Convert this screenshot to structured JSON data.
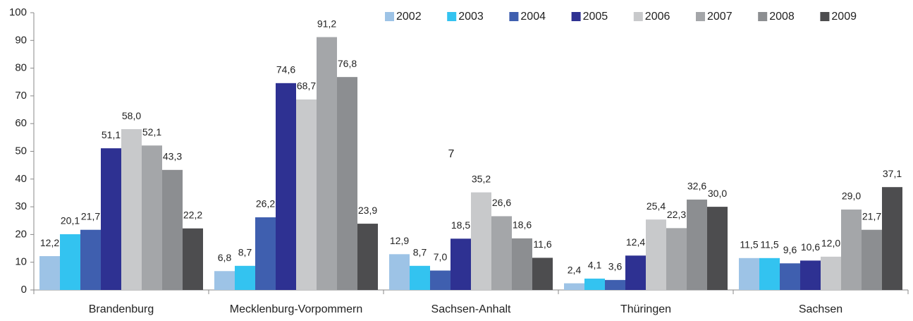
{
  "chart_data": {
    "type": "bar",
    "categories": [
      "Brandenburg",
      "Mecklenburg-Vorpommern",
      "Sachsen-Anhalt",
      "Thüringen",
      "Sachsen"
    ],
    "series": [
      {
        "name": "2002",
        "color": "#9dc3e6",
        "values": [
          12.2,
          6.8,
          12.9,
          2.4,
          11.5
        ],
        "value_labels": [
          "12,2",
          "6,8",
          "12,9",
          "2,4",
          "11,5"
        ]
      },
      {
        "name": "2003",
        "color": "#33c3f0",
        "values": [
          20.1,
          8.7,
          8.7,
          4.1,
          11.5
        ],
        "value_labels": [
          "20,1",
          "8,7",
          "8,7",
          "4,1",
          "11,5"
        ]
      },
      {
        "name": "2004",
        "color": "#3f5faf",
        "values": [
          21.7,
          26.2,
          7.0,
          3.6,
          9.6
        ],
        "value_labels": [
          "21,7",
          "26,2",
          "7,0",
          "3,6",
          "9,6"
        ]
      },
      {
        "name": "2005",
        "color": "#2e3192",
        "values": [
          51.1,
          74.6,
          18.5,
          12.4,
          10.6
        ],
        "value_labels": [
          "51,1",
          "74,6",
          "18,5",
          "12,4",
          "10,6"
        ]
      },
      {
        "name": "2006",
        "color": "#c8c9cb",
        "values": [
          58.0,
          68.7,
          35.2,
          25.4,
          12.0
        ],
        "value_labels": [
          "58,0",
          "68,7",
          "35,2",
          "25,4",
          "12,0"
        ]
      },
      {
        "name": "2007",
        "color": "#a4a6a9",
        "values": [
          52.1,
          91.2,
          26.6,
          22.3,
          29.0
        ],
        "value_labels": [
          "52,1",
          "91,2",
          "26,6",
          "22,3",
          "29,0"
        ]
      },
      {
        "name": "2008",
        "color": "#8c8e91",
        "values": [
          43.3,
          76.8,
          18.6,
          32.6,
          21.7
        ],
        "value_labels": [
          "43,3",
          "76,8",
          "18,6",
          "32,6",
          "21,7"
        ]
      },
      {
        "name": "2009",
        "color": "#4d4d4f",
        "values": [
          22.2,
          23.9,
          11.6,
          30.0,
          37.1
        ],
        "value_labels": [
          "22,2",
          "23,9",
          "11,6",
          "30,0",
          "37,1"
        ]
      }
    ],
    "annotation": "7",
    "ylim": [
      0,
      100
    ],
    "yticks": [
      0,
      10,
      20,
      30,
      40,
      50,
      60,
      70,
      80,
      90,
      100
    ],
    "grid": false,
    "legend": "top-right"
  }
}
